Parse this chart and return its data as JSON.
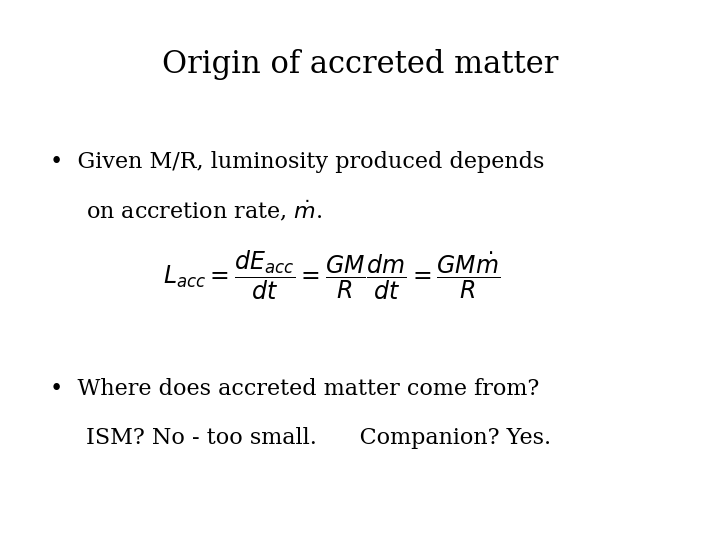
{
  "title": "Origin of accreted matter",
  "title_fontsize": 22,
  "background_color": "#ffffff",
  "text_color": "#000000",
  "bullet1_line1": "Given M/R, luminosity produced depends",
  "bullet1_line2": "on accretion rate, $\\dot{m}$.",
  "formula": "$L_{acc} = \\dfrac{dE_{acc}}{dt} = \\dfrac{GM}{R}\\dfrac{dm}{dt} = \\dfrac{GM\\dot{m}}{R}$",
  "bullet2_line1": "Where does accreted matter come from?",
  "bullet2_line2": "ISM? No - too small.      Companion? Yes.",
  "bullet_fontsize": 16,
  "formula_fontsize": 17,
  "figsize": [
    7.2,
    5.4
  ],
  "dpi": 100
}
